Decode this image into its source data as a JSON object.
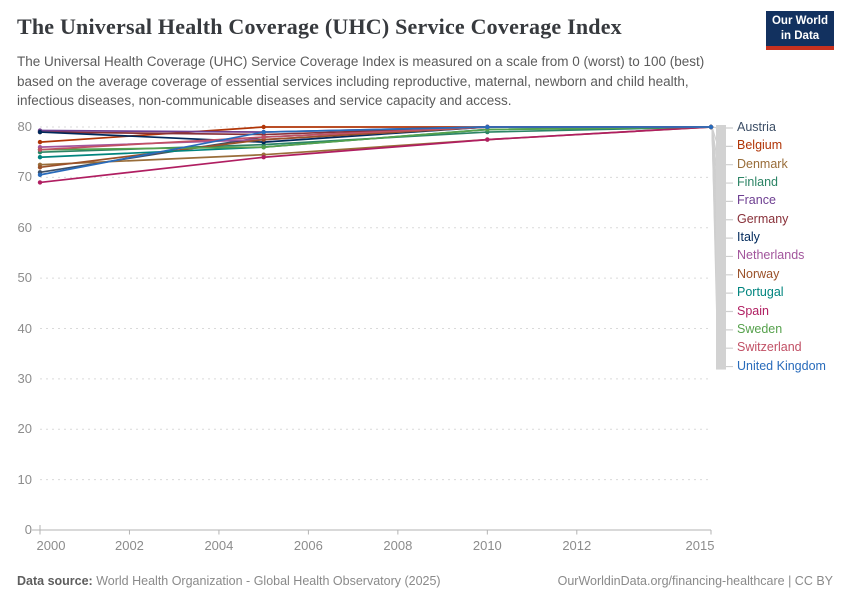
{
  "header": {
    "title": "The Universal Health Coverage (UHC) Service Coverage Index",
    "subtitle": "The Universal Health Coverage (UHC) Service Coverage Index is measured on a scale from 0 (worst) to 100 (best) based on the average coverage of essential services including reproductive, maternal, newborn and child health, infectious diseases, non-communicable diseases and service capacity and access.",
    "logo": {
      "line1": "Our World",
      "line2": "in Data",
      "bg_color": "#12315F",
      "accent_color": "#C7311F"
    }
  },
  "chart_data": {
    "type": "line",
    "x": [
      2000,
      2005,
      2010,
      2015
    ],
    "xticks": [
      2000,
      2002,
      2004,
      2006,
      2008,
      2010,
      2012,
      2015
    ],
    "ylim": [
      0,
      80
    ],
    "yticks": [
      0,
      10,
      20,
      30,
      40,
      50,
      60,
      70,
      80
    ],
    "grid": true,
    "legend_position": "right",
    "title": "The Universal Health Coverage (UHC) Service Coverage Index",
    "xlabel": "",
    "ylabel": "",
    "series": [
      {
        "name": "Austria",
        "color": "#3C4E66",
        "values": [
          71,
          78,
          80,
          80
        ]
      },
      {
        "name": "Belgium",
        "color": "#B13507",
        "values": [
          77,
          80,
          80,
          80
        ]
      },
      {
        "name": "Denmark",
        "color": "#996D39",
        "values": [
          72.5,
          74.5,
          77.5,
          80
        ]
      },
      {
        "name": "Finland",
        "color": "#2C8465",
        "values": [
          75,
          76.5,
          79,
          80
        ]
      },
      {
        "name": "France",
        "color": "#6D3E91",
        "values": [
          79.3,
          79,
          80,
          80
        ]
      },
      {
        "name": "Germany",
        "color": "#883039",
        "values": [
          79,
          78.5,
          80,
          80
        ]
      },
      {
        "name": "Italy",
        "color": "#00295B",
        "values": [
          79,
          77,
          80,
          80
        ]
      },
      {
        "name": "Netherlands",
        "color": "#A2559C",
        "values": [
          76,
          77.5,
          80,
          80
        ]
      },
      {
        "name": "Norway",
        "color": "#9A5129",
        "values": [
          72,
          77.5,
          80,
          80
        ]
      },
      {
        "name": "Portugal",
        "color": "#00847E",
        "values": [
          74,
          76,
          79.5,
          80
        ]
      },
      {
        "name": "Spain",
        "color": "#B01E61",
        "values": [
          69,
          74,
          77.5,
          80
        ]
      },
      {
        "name": "Sweden",
        "color": "#56A14C",
        "values": [
          75.5,
          76,
          79.5,
          80
        ]
      },
      {
        "name": "Switzerland",
        "color": "#C15065",
        "values": [
          75.5,
          78,
          80,
          80
        ]
      },
      {
        "name": "United Kingdom",
        "color": "#286BBB",
        "values": [
          70.5,
          79,
          80,
          80
        ]
      }
    ]
  },
  "footer": {
    "source_label": "Data source:",
    "source_text": "World Health Organization - Global Health Observatory (2025)",
    "right_text": "OurWorldinData.org/financing-healthcare | CC BY"
  }
}
